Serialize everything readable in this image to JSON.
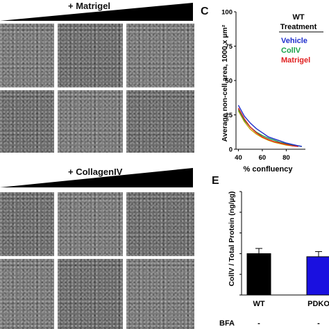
{
  "top_block": {
    "gradient_label": "+ Matrigel"
  },
  "bottom_block": {
    "gradient_label": "+ CollagenIV"
  },
  "panel_c": {
    "letter": "C",
    "legend_title_line1": "WT",
    "legend_title_line2": "Treatment",
    "colors": {
      "Vehicle": "#1f2fcc",
      "CollV": "#1aa34a",
      "Matrigel": "#e02020",
      "Other": "#c9a400"
    }
  },
  "panel_e": {
    "letter": "E",
    "bfa_label": "BFA",
    "bfa_values": [
      "-",
      "-"
    ],
    "colors": {
      "WT": "#000000",
      "PDKO": "#1a10e0"
    }
  },
  "chart_data": [
    {
      "type": "line",
      "xlabel": "% confluency",
      "ylabel": "Average non-cell area, 1000 x µm²",
      "xlim": [
        38,
        96
      ],
      "ylim": [
        0,
        100
      ],
      "xticks": [
        40,
        60,
        80
      ],
      "yticks": [
        0,
        25,
        50,
        75,
        100
      ],
      "legend_position": "top-right",
      "series": [
        {
          "name": "Vehicle",
          "x": [
            40,
            45,
            50,
            55,
            60,
            65,
            70,
            75,
            80,
            85,
            90,
            93
          ],
          "y": [
            32,
            24,
            19,
            15,
            12,
            9,
            7.5,
            6,
            4.5,
            3.5,
            2.5,
            2
          ]
        },
        {
          "name": "CollV",
          "x": [
            40,
            45,
            50,
            55,
            60,
            65,
            70,
            75,
            80,
            85,
            90,
            93
          ],
          "y": [
            29,
            21,
            16,
            12.5,
            10,
            8,
            6.5,
            5,
            4,
            3,
            2.5,
            2
          ]
        },
        {
          "name": "Matrigel",
          "x": [
            40,
            45,
            50,
            55,
            60,
            65,
            70,
            75,
            80,
            85,
            90
          ],
          "y": [
            30,
            22,
            16,
            12,
            9,
            7,
            5.5,
            4.5,
            3.5,
            2.5,
            2
          ]
        },
        {
          "x": [
            40,
            45,
            50,
            55,
            60,
            65,
            70,
            75,
            80,
            85,
            90
          ],
          "y": [
            28,
            20,
            14.5,
            11,
            8.5,
            6.5,
            5,
            4,
            3,
            2.5,
            2
          ]
        }
      ]
    },
    {
      "type": "bar",
      "ylabel": "CollV / Total Protein (ng/µg)",
      "categories": [
        "WT",
        "PDKO"
      ],
      "values": [
        40,
        37
      ],
      "errors": [
        5,
        5
      ],
      "ylim": [
        0,
        100
      ],
      "yticks": [
        0,
        20,
        40,
        60,
        80,
        100
      ]
    }
  ]
}
